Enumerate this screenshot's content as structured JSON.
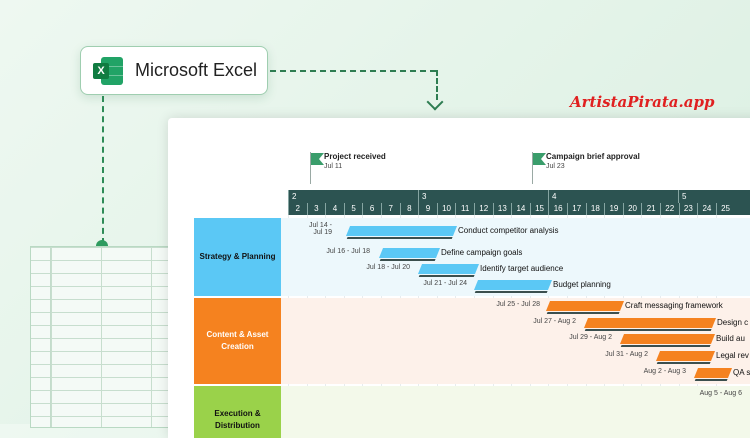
{
  "app": {
    "name": "Microsoft Excel",
    "logo_letter": "X"
  },
  "watermark": "ArtistaPirata.app",
  "colors": {
    "accent_green": "#2e9b5f",
    "header_dark": "#2c5351",
    "blue": "#5bc8f5",
    "orange": "#f5821f",
    "lime": "#9ad24a"
  },
  "milestones": [
    {
      "title": "Project received",
      "date": "Jul 11"
    },
    {
      "title": "Campaign brief approval",
      "date": "Jul 23"
    }
  ],
  "timeline": {
    "weeks": [
      "2",
      "3",
      "4",
      "5"
    ],
    "days": [
      "2",
      "3",
      "4",
      "5",
      "6",
      "7",
      "8",
      "9",
      "10",
      "11",
      "12",
      "13",
      "14",
      "15",
      "16",
      "17",
      "18",
      "19",
      "20",
      "21",
      "22",
      "23",
      "24",
      "25"
    ]
  },
  "swimlanes": [
    {
      "label": "Strategy & Planning",
      "color": "#5bc8f5",
      "band": "#edf8fc"
    },
    {
      "label": "Content & Asset Creation",
      "color": "#f5821f",
      "band": "#fdf1ea"
    },
    {
      "label": "Execution & Distribution",
      "color": "#9ad24a",
      "band": "#f3f9ea"
    }
  ],
  "tasks": [
    {
      "name": "Conduct competitor analysis",
      "dates": "Jul 14 -\nJul 19",
      "lane": 0
    },
    {
      "name": "Define campaign goals",
      "dates": "Jul 16 - Jul 18",
      "lane": 0
    },
    {
      "name": "Identify target audience",
      "dates": "Jul 18 - Jul 20",
      "lane": 0
    },
    {
      "name": "Budget planning",
      "dates": "Jul 21 - Jul 24",
      "lane": 0
    },
    {
      "name": "Craft messaging framework",
      "dates": "Jul 25 - Jul 28",
      "lane": 1
    },
    {
      "name": "Design c",
      "dates": "Jul 27 - Aug 2",
      "lane": 1
    },
    {
      "name": "Build au",
      "dates": "Jul 29 - Aug 2",
      "lane": 1
    },
    {
      "name": "Legal rev",
      "dates": "Jul 31 - Aug 2",
      "lane": 1
    },
    {
      "name": "QA s",
      "dates": "Aug 2 - Aug 3",
      "lane": 1
    },
    {
      "name": "",
      "dates": "Aug 5 - Aug 6",
      "lane": 2
    }
  ]
}
